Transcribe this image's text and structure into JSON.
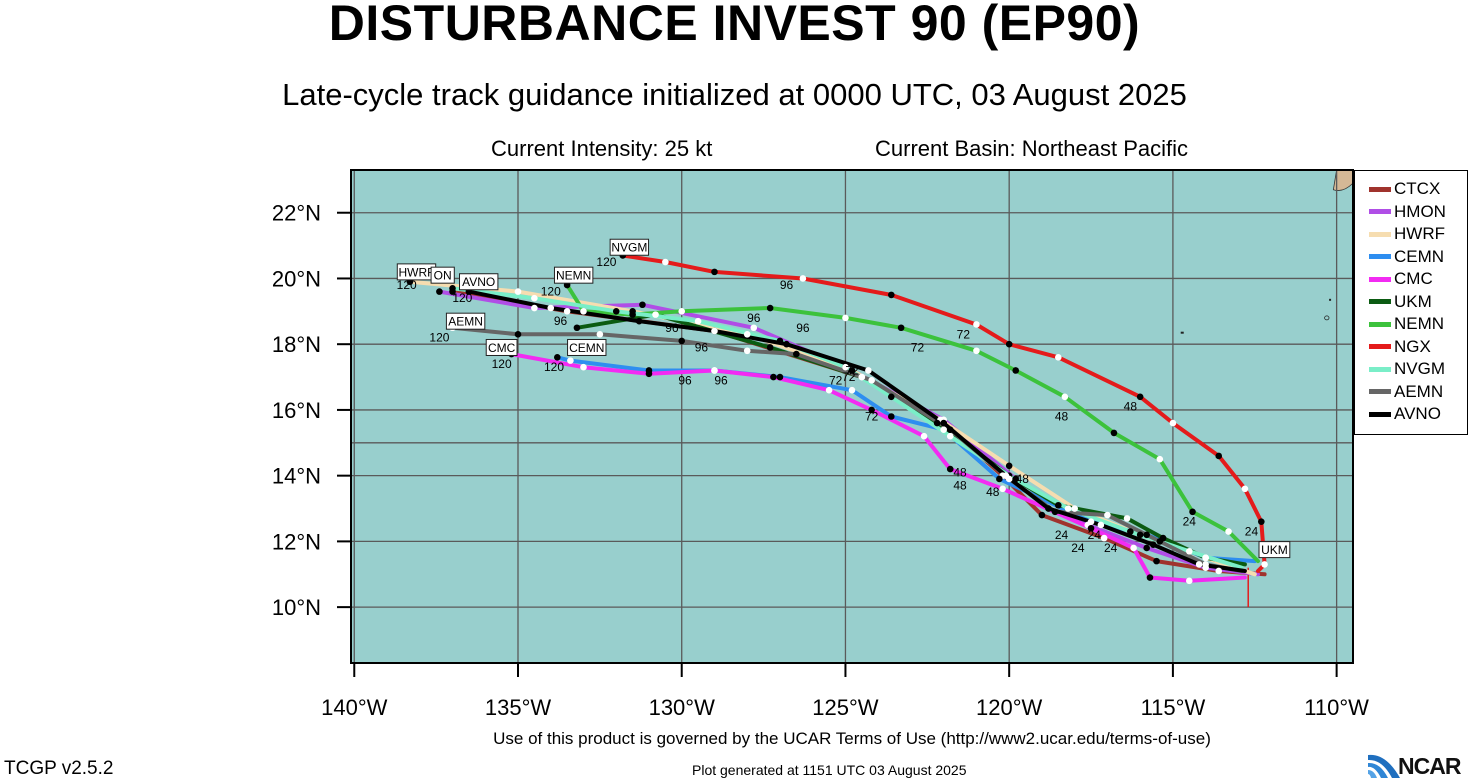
{
  "title": "DISTURBANCE INVEST 90 (EP90)",
  "subtitle": "Late-cycle track guidance initialized at 0000 UTC, 03 August 2025",
  "current_intensity": "Current Intensity: 25 kt",
  "current_basin": "Current Basin: Northeast Pacific",
  "footer": {
    "terms": "Use of this product is governed by the UCAR Terms of Use (http://www2.ucar.edu/terms-of-use)",
    "version": "TCGP v2.5.2",
    "generated": "Plot generated at 1151 UTC   03 August 2025",
    "logo_text": "NCAR"
  },
  "colors": {
    "ocean": "#98cfcd",
    "land": "#d4b896",
    "grid": "#5a5a5a"
  },
  "axes": {
    "lat_ticks": [
      "22°N",
      "20°N",
      "18°N",
      "16°N",
      "14°N",
      "12°N",
      "10°N"
    ],
    "lat_values": [
      22,
      20,
      18,
      16,
      14,
      12,
      10
    ],
    "lon_ticks": [
      "140°W",
      "135°W",
      "130°W",
      "125°W",
      "120°W",
      "115°W",
      "110°W"
    ],
    "lon_values": [
      140,
      135,
      130,
      125,
      120,
      115,
      110
    ],
    "lon_range": [
      140.1,
      109.5
    ],
    "lat_range": [
      8.3,
      23.3
    ]
  },
  "chart_data": {
    "type": "track_map",
    "legend_position": "right",
    "series": [
      {
        "name": "CTCX",
        "color": "#a0332d",
        "points": [
          [
            112.2,
            11.0
          ],
          [
            113.6,
            11.1
          ],
          [
            115.5,
            11.4
          ],
          [
            117.1,
            12.1
          ],
          [
            119.0,
            12.8
          ],
          [
            120.2,
            14.0
          ],
          [
            122.0,
            15.6
          ],
          [
            124.5,
            17.0
          ],
          [
            129.0,
            18.4
          ],
          [
            133.5,
            19.0
          ],
          [
            137.0,
            19.6
          ]
        ],
        "labels": []
      },
      {
        "name": "HMON",
        "color": "#b04ee6",
        "points": [
          [
            112.4,
            11.0
          ],
          [
            114.0,
            11.2
          ],
          [
            115.8,
            11.8
          ],
          [
            117.6,
            12.5
          ],
          [
            119.8,
            13.9
          ],
          [
            122.0,
            15.7
          ],
          [
            125.0,
            17.3
          ],
          [
            127.8,
            18.5
          ],
          [
            131.2,
            19.2
          ],
          [
            134.5,
            19.1
          ],
          [
            137.4,
            19.6
          ]
        ],
        "labels": []
      },
      {
        "name": "HWRF",
        "color": "#f6ddb0",
        "points": [
          [
            112.5,
            11.0
          ],
          [
            114.0,
            11.5
          ],
          [
            116.0,
            12.2
          ],
          [
            118.0,
            13.0
          ],
          [
            120.0,
            14.3
          ],
          [
            122.1,
            15.7
          ],
          [
            124.8,
            17.2
          ],
          [
            128.0,
            18.3
          ],
          [
            131.5,
            19.0
          ],
          [
            135.0,
            19.6
          ],
          [
            138.3,
            19.9
          ]
        ],
        "labels": [
          [
            124.8,
            17.2,
            "72"
          ],
          [
            119.6,
            13.9,
            "48"
          ],
          [
            138.4,
            19.8,
            "120"
          ]
        ]
      },
      {
        "name": "CEMN",
        "color": "#2e8ef0",
        "points": [
          [
            112.5,
            11.4
          ],
          [
            114.0,
            11.5
          ],
          [
            115.8,
            12.2
          ],
          [
            117.5,
            12.6
          ],
          [
            120.3,
            13.9
          ],
          [
            122.0,
            15.4
          ],
          [
            123.6,
            15.8
          ],
          [
            124.8,
            16.6
          ],
          [
            127.0,
            17.0
          ],
          [
            129.0,
            17.2
          ],
          [
            131.0,
            17.2
          ],
          [
            133.4,
            17.5
          ],
          [
            133.8,
            17.6
          ]
        ],
        "labels": [
          [
            128.8,
            16.9,
            "96"
          ],
          [
            133.9,
            17.3,
            "120"
          ]
        ]
      },
      {
        "name": "CMC",
        "color": "#f22bf2",
        "points": [
          [
            112.8,
            10.9
          ],
          [
            114.5,
            10.8
          ],
          [
            115.7,
            10.9
          ],
          [
            116.2,
            11.8
          ],
          [
            117.5,
            12.4
          ],
          [
            120.2,
            13.6
          ],
          [
            121.8,
            14.2
          ],
          [
            122.6,
            15.2
          ],
          [
            124.2,
            16.0
          ],
          [
            125.5,
            16.6
          ],
          [
            127.2,
            17.0
          ],
          [
            129.0,
            17.2
          ],
          [
            131.0,
            17.1
          ],
          [
            133.0,
            17.3
          ],
          [
            135.2,
            17.7
          ]
        ],
        "labels": [
          [
            124.2,
            15.8,
            "72"
          ],
          [
            129.9,
            16.9,
            "96"
          ],
          [
            135.5,
            17.4,
            "120"
          ]
        ]
      },
      {
        "name": "UKM",
        "color": "#0b5b12",
        "points": [
          [
            112.8,
            11.3
          ],
          [
            114.0,
            11.5
          ],
          [
            115.3,
            12.1
          ],
          [
            116.4,
            12.7
          ],
          [
            118.5,
            13.1
          ],
          [
            120.0,
            14.0
          ],
          [
            122.2,
            15.6
          ],
          [
            124.5,
            17.0
          ],
          [
            127.3,
            17.9
          ],
          [
            130.8,
            18.9
          ],
          [
            133.2,
            18.5
          ]
        ],
        "labels": []
      },
      {
        "name": "NEMN",
        "color": "#3cc23c",
        "points": [
          [
            112.4,
            11.4
          ],
          [
            113.3,
            12.3
          ],
          [
            114.4,
            12.9
          ],
          [
            115.4,
            14.5
          ],
          [
            116.8,
            15.3
          ],
          [
            118.3,
            16.4
          ],
          [
            119.8,
            17.2
          ],
          [
            121.0,
            17.8
          ],
          [
            123.3,
            18.5
          ],
          [
            125.0,
            18.8
          ],
          [
            127.3,
            19.1
          ],
          [
            130.0,
            19.0
          ],
          [
            131.5,
            18.9
          ],
          [
            133.0,
            19.0
          ],
          [
            133.5,
            19.8
          ]
        ],
        "labels": [
          [
            114.5,
            12.6,
            "24"
          ],
          [
            118.4,
            15.8,
            "48"
          ],
          [
            122.8,
            17.9,
            "72"
          ],
          [
            127.8,
            18.8,
            "96"
          ],
          [
            134.0,
            19.6,
            "120"
          ]
        ]
      },
      {
        "name": "NGX",
        "color": "#e41b1b",
        "points": [
          [
            112.4,
            11.1
          ],
          [
            112.2,
            11.3
          ],
          [
            112.3,
            12.6
          ],
          [
            112.8,
            13.6
          ],
          [
            113.6,
            14.6
          ],
          [
            115.0,
            15.6
          ],
          [
            116.0,
            16.4
          ],
          [
            118.5,
            17.6
          ],
          [
            120.0,
            18.0
          ],
          [
            121.0,
            18.6
          ],
          [
            123.6,
            19.5
          ],
          [
            126.3,
            20.0
          ],
          [
            129.0,
            20.2
          ],
          [
            130.5,
            20.5
          ],
          [
            131.8,
            20.7
          ]
        ],
        "labels": [
          [
            112.6,
            12.3,
            "24"
          ],
          [
            116.3,
            16.1,
            "48"
          ],
          [
            121.4,
            18.3,
            "72"
          ],
          [
            126.8,
            19.8,
            "96"
          ],
          [
            132.3,
            20.5,
            "120"
          ]
        ]
      },
      {
        "name": "NVGM",
        "color": "#7aeec8",
        "points": [
          [
            112.9,
            11.2
          ],
          [
            114.5,
            11.7
          ],
          [
            116.3,
            12.3
          ],
          [
            118.2,
            13.0
          ],
          [
            120.0,
            14.0
          ],
          [
            121.8,
            15.2
          ],
          [
            123.6,
            16.4
          ],
          [
            125.0,
            17.3
          ],
          [
            127.0,
            18.1
          ],
          [
            129.5,
            18.7
          ],
          [
            132.0,
            19.0
          ],
          [
            134.5,
            19.4
          ],
          [
            137.0,
            19.7
          ]
        ],
        "labels": [
          [
            118.4,
            12.2,
            "24"
          ]
        ]
      },
      {
        "name": "AEMN",
        "color": "#666666",
        "points": [
          [
            112.9,
            11.1
          ],
          [
            114.0,
            11.3
          ],
          [
            115.4,
            12.0
          ],
          [
            117.0,
            12.8
          ],
          [
            118.6,
            12.9
          ],
          [
            120.0,
            13.9
          ],
          [
            121.8,
            15.4
          ],
          [
            124.2,
            16.9
          ],
          [
            126.5,
            17.7
          ],
          [
            128.0,
            17.8
          ],
          [
            130.0,
            18.1
          ],
          [
            132.5,
            18.3
          ],
          [
            135.0,
            18.3
          ],
          [
            137.0,
            18.5
          ]
        ],
        "labels": [
          [
            117.9,
            11.8,
            "24"
          ],
          [
            120.5,
            13.5,
            "48"
          ],
          [
            129.4,
            17.9,
            "96"
          ],
          [
            137.4,
            18.2,
            "120"
          ]
        ]
      },
      {
        "name": "AVNO",
        "color": "#000000",
        "points": [
          [
            112.8,
            11.1
          ],
          [
            114.2,
            11.3
          ],
          [
            115.6,
            11.9
          ],
          [
            117.2,
            12.5
          ],
          [
            118.8,
            13.0
          ],
          [
            120.1,
            14.0
          ],
          [
            122.0,
            15.6
          ],
          [
            124.3,
            17.2
          ],
          [
            126.8,
            18.0
          ],
          [
            129.0,
            18.4
          ],
          [
            131.3,
            18.7
          ],
          [
            134.0,
            19.1
          ],
          [
            136.5,
            19.6
          ]
        ],
        "labels": [
          [
            117.4,
            12.2,
            "24"
          ],
          [
            121.5,
            13.7,
            "48"
          ],
          [
            125.3,
            16.9,
            "72"
          ],
          [
            130.3,
            18.5,
            "96"
          ],
          [
            136.7,
            19.4,
            "120"
          ]
        ]
      }
    ],
    "extra_labels": [
      [
        126.3,
        18.5,
        "96"
      ],
      [
        133.7,
        18.7,
        "96"
      ],
      [
        124.9,
        17.0,
        "72"
      ],
      [
        121.5,
        14.1,
        "48"
      ],
      [
        116.9,
        11.8,
        "24"
      ]
    ],
    "storm_tags": [
      {
        "text": "NVGM",
        "lon": 131.6,
        "lat": 20.95
      },
      {
        "text": "NEMN",
        "lon": 133.3,
        "lat": 20.1
      },
      {
        "text": "HWRF",
        "lon": 138.1,
        "lat": 20.2
      },
      {
        "text": "ON",
        "lon": 137.3,
        "lat": 20.1
      },
      {
        "text": "AVNO",
        "lon": 136.2,
        "lat": 19.9
      },
      {
        "text": "AEMN",
        "lon": 136.6,
        "lat": 18.7
      },
      {
        "text": "CMC",
        "lon": 135.5,
        "lat": 17.9
      },
      {
        "text": "CEMN",
        "lon": 132.9,
        "lat": 17.9
      },
      {
        "text": "UKM",
        "lon": 111.9,
        "lat": 11.75
      }
    ]
  }
}
